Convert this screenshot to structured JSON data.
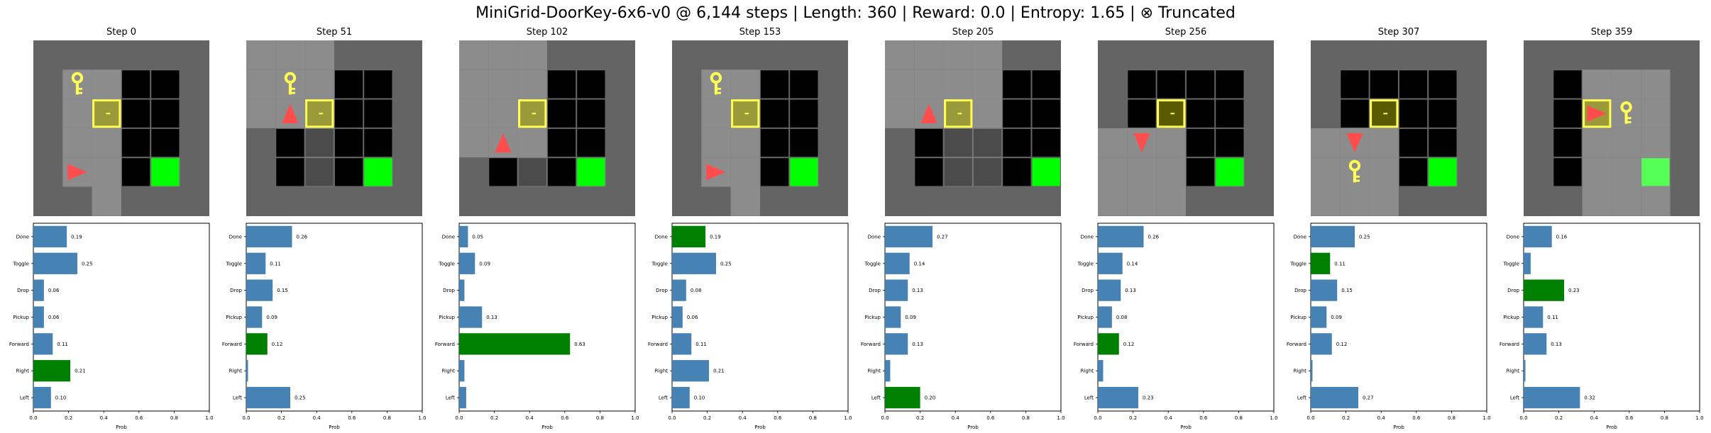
{
  "title": "MiniGrid-DoorKey-6x6-v0 @ 6,144 steps | Length: 360 | Reward: 0.0 | Entropy: 1.65 | ⊗ Truncated",
  "colors": {
    "bar_default": "#4682b4",
    "bar_selected": "#008000",
    "floor": "#8c8c8c",
    "dim": "#646464",
    "grid_dark": "#4b4b4b",
    "black": "#000000",
    "goal": "#00ff00",
    "goal_visible": "#55ff55",
    "key": "#ffff55",
    "door_fill": "#9a9a3a",
    "door_fill_dark": "#5a5a00",
    "door_edge": "#ffff55",
    "agent": "#ff4d4d"
  },
  "chart_data": {
    "type": "bar",
    "orientation": "horizontal",
    "categories": [
      "Done",
      "Toggle",
      "Drop",
      "Pickup",
      "Forward",
      "Right",
      "Left"
    ],
    "xlabel": "Prob",
    "xlim": [
      0,
      1
    ],
    "xticks": [
      "0.0",
      "0.2",
      "0.4",
      "0.6",
      "0.8",
      "1.0"
    ],
    "panels": [
      {
        "title": "Step 0",
        "values": [
          0.19,
          0.25,
          0.06,
          0.06,
          0.11,
          0.21,
          0.1
        ],
        "labels": [
          "0.19",
          "0.25",
          "0.06",
          "0.06",
          "0.11",
          "0.21",
          "0.10"
        ],
        "selected": "Right"
      },
      {
        "title": "Step 51",
        "values": [
          0.26,
          0.11,
          0.15,
          0.09,
          0.12,
          0.01,
          0.25
        ],
        "labels": [
          "0.26",
          "0.11",
          "0.15",
          "0.09",
          "0.12",
          "",
          "0.25"
        ],
        "selected": "Forward"
      },
      {
        "title": "Step 102",
        "values": [
          0.05,
          0.09,
          0.03,
          0.13,
          0.63,
          0.03,
          0.04
        ],
        "labels": [
          "0.05",
          "0.09",
          "",
          "0.13",
          "0.63",
          "",
          ""
        ],
        "selected": "Forward"
      },
      {
        "title": "Step 153",
        "values": [
          0.19,
          0.25,
          0.08,
          0.06,
          0.11,
          0.21,
          0.1
        ],
        "labels": [
          "0.19",
          "0.25",
          "0.08",
          "0.06",
          "0.11",
          "0.21",
          "0.10"
        ],
        "selected": "Done"
      },
      {
        "title": "Step 205",
        "values": [
          0.27,
          0.14,
          0.13,
          0.09,
          0.13,
          0.03,
          0.2
        ],
        "labels": [
          "0.27",
          "0.14",
          "0.13",
          "0.09",
          "0.13",
          "",
          "0.20"
        ],
        "selected": "Left"
      },
      {
        "title": "Step 256",
        "values": [
          0.26,
          0.14,
          0.13,
          0.08,
          0.12,
          0.03,
          0.23
        ],
        "labels": [
          "0.26",
          "0.14",
          "0.13",
          "0.08",
          "0.12",
          "",
          "0.23"
        ],
        "selected": "Forward"
      },
      {
        "title": "Step 307",
        "values": [
          0.25,
          0.11,
          0.15,
          0.09,
          0.12,
          0.01,
          0.27
        ],
        "labels": [
          "0.25",
          "0.11",
          "0.15",
          "0.09",
          "0.12",
          "",
          "0.27"
        ],
        "selected": "Toggle"
      },
      {
        "title": "Step 359",
        "values": [
          0.16,
          0.04,
          0.23,
          0.11,
          0.13,
          0.01,
          0.32
        ],
        "labels": [
          "0.16",
          "",
          "0.23",
          "0.11",
          "0.13",
          "",
          "0.32"
        ],
        "selected": "Drop"
      }
    ]
  },
  "frames": [
    {
      "visible": [
        [
          1,
          1
        ],
        [
          1,
          2
        ],
        [
          1,
          3
        ],
        [
          1,
          4
        ],
        [
          2,
          1
        ],
        [
          2,
          2
        ],
        [
          2,
          3
        ],
        [
          2,
          4
        ],
        [
          2,
          5
        ]
      ],
      "black": [
        [
          3,
          1
        ],
        [
          4,
          1
        ],
        [
          3,
          2
        ],
        [
          4,
          2
        ],
        [
          3,
          3
        ],
        [
          4,
          3
        ],
        [
          3,
          4
        ]
      ],
      "key": [
        1,
        1
      ],
      "door": [
        2,
        2
      ],
      "door_dark": false,
      "goal": [
        4,
        4
      ],
      "goal_visible": false,
      "agent": {
        "cell": [
          1,
          4
        ],
        "dir": "right"
      }
    },
    {
      "visible": [
        [
          0,
          0
        ],
        [
          1,
          0
        ],
        [
          2,
          0
        ],
        [
          0,
          1
        ],
        [
          1,
          1
        ],
        [
          2,
          1
        ],
        [
          0,
          2
        ],
        [
          1,
          2
        ],
        [
          2,
          2
        ]
      ],
      "black": [
        [
          3,
          1
        ],
        [
          4,
          1
        ],
        [
          3,
          2
        ],
        [
          4,
          2
        ],
        [
          3,
          3
        ],
        [
          4,
          3
        ],
        [
          3,
          4
        ],
        [
          1,
          3
        ],
        [
          1,
          4
        ]
      ],
      "key": [
        1,
        1
      ],
      "door": [
        2,
        2
      ],
      "door_dark": false,
      "goal": [
        4,
        4
      ],
      "goal_visible": false,
      "agent": {
        "cell": [
          1,
          2
        ],
        "dir": "up"
      }
    },
    {
      "visible": [
        [
          0,
          0
        ],
        [
          1,
          0
        ],
        [
          2,
          0
        ],
        [
          0,
          1
        ],
        [
          1,
          1
        ],
        [
          2,
          1
        ],
        [
          0,
          2
        ],
        [
          1,
          2
        ],
        [
          2,
          2
        ],
        [
          0,
          3
        ],
        [
          1,
          3
        ],
        [
          2,
          3
        ]
      ],
      "black": [
        [
          3,
          1
        ],
        [
          4,
          1
        ],
        [
          3,
          2
        ],
        [
          4,
          2
        ],
        [
          3,
          3
        ],
        [
          4,
          3
        ],
        [
          3,
          4
        ],
        [
          1,
          4
        ]
      ],
      "key": null,
      "door": [
        2,
        2
      ],
      "door_dark": false,
      "goal": [
        4,
        4
      ],
      "goal_visible": false,
      "agent": {
        "cell": [
          1,
          3
        ],
        "dir": "up"
      }
    },
    {
      "visible": [
        [
          1,
          1
        ],
        [
          1,
          2
        ],
        [
          1,
          3
        ],
        [
          1,
          4
        ],
        [
          2,
          1
        ],
        [
          2,
          2
        ],
        [
          2,
          3
        ],
        [
          2,
          4
        ],
        [
          2,
          5
        ]
      ],
      "black": [
        [
          3,
          1
        ],
        [
          4,
          1
        ],
        [
          3,
          2
        ],
        [
          4,
          2
        ],
        [
          3,
          3
        ],
        [
          4,
          3
        ],
        [
          3,
          4
        ]
      ],
      "key": [
        1,
        1
      ],
      "door": [
        2,
        2
      ],
      "door_dark": false,
      "goal": [
        4,
        4
      ],
      "goal_visible": false,
      "agent": {
        "cell": [
          1,
          4
        ],
        "dir": "right"
      }
    },
    {
      "visible": [
        [
          0,
          0
        ],
        [
          1,
          0
        ],
        [
          2,
          0
        ],
        [
          3,
          0
        ],
        [
          0,
          1
        ],
        [
          1,
          1
        ],
        [
          2,
          1
        ],
        [
          3,
          1
        ],
        [
          0,
          2
        ],
        [
          1,
          2
        ],
        [
          2,
          2
        ],
        [
          3,
          2
        ]
      ],
      "black": [
        [
          4,
          1
        ],
        [
          5,
          1
        ],
        [
          4,
          2
        ],
        [
          5,
          2
        ],
        [
          4,
          3
        ],
        [
          5,
          3
        ],
        [
          4,
          4
        ],
        [
          1,
          3
        ],
        [
          1,
          4
        ]
      ],
      "key": null,
      "door": [
        2,
        2
      ],
      "door_dark": false,
      "goal": [
        5,
        4
      ],
      "goal_visible": false,
      "agent": {
        "cell": [
          1,
          2
        ],
        "dir": "up"
      }
    },
    {
      "visible": [
        [
          0,
          3
        ],
        [
          1,
          3
        ],
        [
          2,
          3
        ],
        [
          0,
          4
        ],
        [
          1,
          4
        ],
        [
          2,
          4
        ],
        [
          0,
          5
        ],
        [
          1,
          5
        ],
        [
          2,
          5
        ]
      ],
      "black": [
        [
          1,
          1
        ],
        [
          2,
          1
        ],
        [
          3,
          1
        ],
        [
          4,
          1
        ],
        [
          1,
          2
        ],
        [
          3,
          2
        ],
        [
          4,
          2
        ],
        [
          3,
          3
        ],
        [
          4,
          3
        ],
        [
          3,
          4
        ]
      ],
      "key": null,
      "door": [
        2,
        2
      ],
      "door_dark": true,
      "goal": [
        4,
        4
      ],
      "goal_visible": false,
      "agent": {
        "cell": [
          1,
          3
        ],
        "dir": "down"
      }
    },
    {
      "visible": [
        [
          0,
          3
        ],
        [
          1,
          3
        ],
        [
          2,
          3
        ],
        [
          0,
          4
        ],
        [
          1,
          4
        ],
        [
          2,
          4
        ],
        [
          0,
          5
        ],
        [
          1,
          5
        ],
        [
          2,
          5
        ]
      ],
      "black": [
        [
          1,
          1
        ],
        [
          2,
          1
        ],
        [
          3,
          1
        ],
        [
          4,
          1
        ],
        [
          1,
          2
        ],
        [
          3,
          2
        ],
        [
          4,
          2
        ],
        [
          3,
          3
        ],
        [
          4,
          3
        ],
        [
          3,
          4
        ]
      ],
      "key": [
        1,
        4
      ],
      "door": [
        2,
        2
      ],
      "door_dark": true,
      "goal": [
        4,
        4
      ],
      "goal_visible": false,
      "agent": {
        "cell": [
          1,
          3
        ],
        "dir": "down"
      }
    },
    {
      "visible": [
        [
          2,
          1
        ],
        [
          3,
          1
        ],
        [
          4,
          1
        ],
        [
          2,
          2
        ],
        [
          3,
          2
        ],
        [
          4,
          2
        ],
        [
          2,
          3
        ],
        [
          3,
          3
        ],
        [
          4,
          3
        ],
        [
          2,
          4
        ],
        [
          3,
          4
        ],
        [
          4,
          4
        ],
        [
          2,
          5
        ],
        [
          3,
          5
        ],
        [
          4,
          5
        ]
      ],
      "black": [
        [
          1,
          1
        ],
        [
          1,
          2
        ],
        [
          1,
          3
        ],
        [
          1,
          4
        ]
      ],
      "key": [
        3,
        2
      ],
      "door": [
        2,
        2
      ],
      "door_dark": false,
      "goal": [
        4,
        4
      ],
      "goal_visible": true,
      "agent": {
        "cell": [
          2,
          2
        ],
        "dir": "right"
      }
    }
  ]
}
